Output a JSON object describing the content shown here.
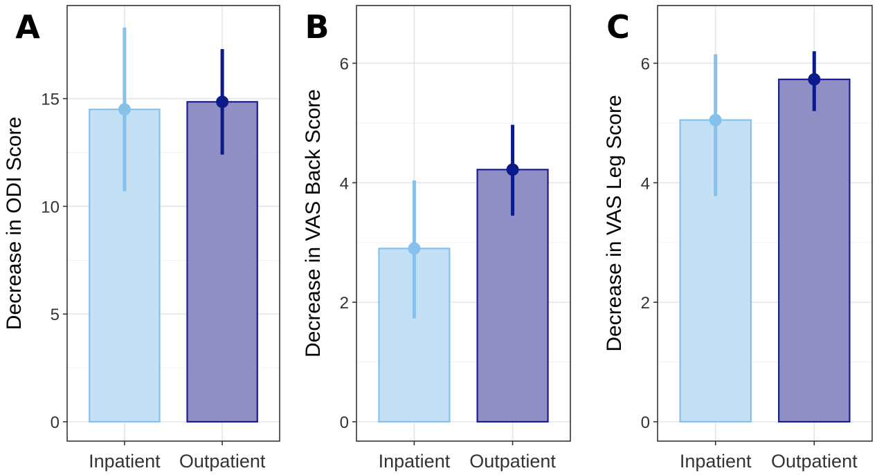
{
  "chart_data": [
    {
      "type": "bar",
      "panel_label": "A",
      "categories": [
        "Inpatient",
        "Outpatient"
      ],
      "values": [
        14.5,
        14.85
      ],
      "error_low": [
        10.7,
        12.4
      ],
      "error_high": [
        18.3,
        17.3
      ],
      "xlabel": "",
      "ylabel": "Decrease in ODI Score",
      "ylim": [
        0,
        19
      ],
      "yticks": [
        0,
        5,
        10,
        15
      ],
      "grid": true
    },
    {
      "type": "bar",
      "panel_label": "B",
      "categories": [
        "Inpatient",
        "Outpatient"
      ],
      "values": [
        2.9,
        4.22
      ],
      "error_low": [
        1.73,
        3.45
      ],
      "error_high": [
        4.04,
        4.97
      ],
      "xlabel": "",
      "ylabel": "Decrease in VAS Back Score",
      "ylim": [
        0,
        6.85
      ],
      "yticks": [
        0,
        2,
        4,
        6
      ],
      "grid": true
    },
    {
      "type": "bar",
      "panel_label": "C",
      "categories": [
        "Inpatient",
        "Outpatient"
      ],
      "values": [
        5.05,
        5.73
      ],
      "error_low": [
        3.78,
        5.2
      ],
      "error_high": [
        6.15,
        6.2
      ],
      "xlabel": "",
      "ylabel": "Decrease in VAS Leg Score",
      "ylim": [
        0,
        6.85
      ],
      "yticks": [
        0,
        2,
        4,
        6
      ],
      "grid": true
    }
  ],
  "colors": {
    "inpatient_fill": "#c4e0f5",
    "inpatient_stroke": "#85c1ec",
    "inpatient_line": "#85c1ec",
    "outpatient_fill": "#8f8fc6",
    "outpatient_stroke": "#1b1b8f",
    "outpatient_line": "#0c1a8a",
    "grid": "#e5e5e5",
    "border": "#333333"
  }
}
